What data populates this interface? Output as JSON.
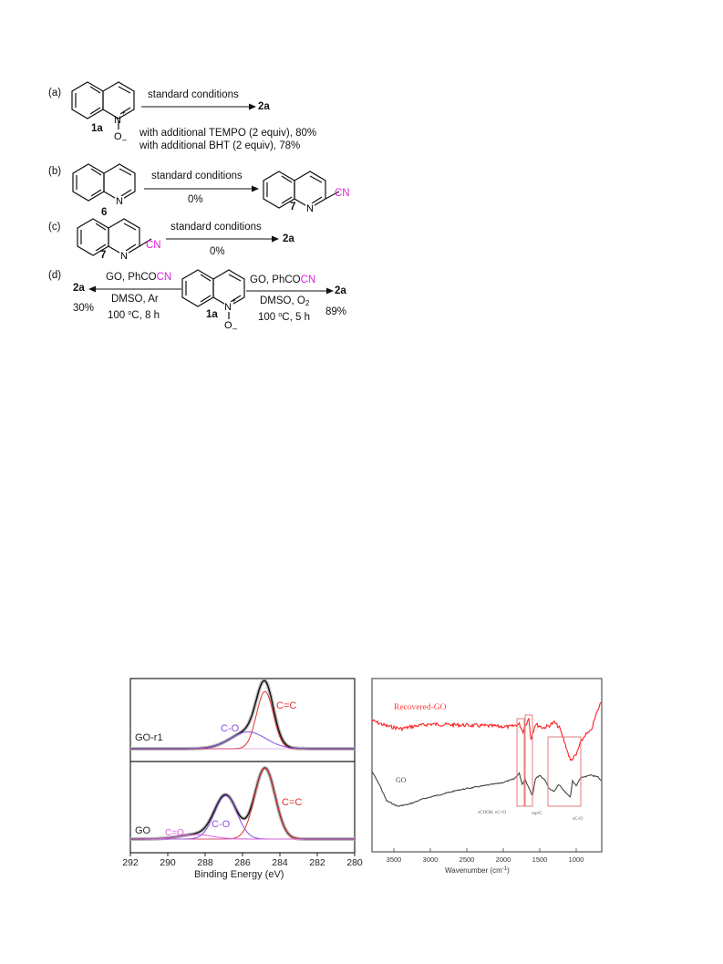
{
  "scheme": {
    "a": {
      "label": "(a)",
      "cmpd": "1a",
      "arrow_text": "standard conditions",
      "product": "2a",
      "note1": "with additional TEMPO (2 equiv), 80%",
      "note2": "with additional BHT (2 equiv), 78%"
    },
    "b": {
      "label": "(b)",
      "cmpd": "6",
      "arrow_text": "standard conditions",
      "yield": "0%",
      "product": "7",
      "cn": "CN"
    },
    "c": {
      "label": "(c)",
      "cmpd": "7",
      "cn": "CN",
      "arrow_text": "standard conditions",
      "yield": "0%",
      "product": "2a"
    },
    "d": {
      "label": "(d)",
      "cmpd": "1a",
      "left": {
        "product": "2a",
        "yield": "30%",
        "reagent_pre": "GO, PhCO",
        "reagent_cn": "CN",
        "solvent": "DMSO, Ar",
        "temp": "100",
        "deg": "o",
        "temp_unit": "C, 8 h"
      },
      "right": {
        "product": "2a",
        "yield": "89%",
        "reagent_pre": "GO, PhCO",
        "reagent_cn": "CN",
        "solvent_pre": "DMSO, O",
        "solvent_sub": "2",
        "temp": "100",
        "deg": "o",
        "temp_unit": "C, 5 h"
      }
    },
    "atoms": {
      "N": "N",
      "plus": "+",
      "O": "O",
      "minus": "–"
    }
  },
  "xps": {
    "top_sample": "GO-r1",
    "bottom_sample": "GO",
    "xlabel": "Binding Energy (eV)",
    "ticks": [
      "292",
      "290",
      "288",
      "286",
      "284",
      "282",
      "280"
    ],
    "top_peaks": [
      "C-O",
      "C=C"
    ],
    "bottom_peaks": [
      "C=O",
      "C-O",
      "C=C"
    ],
    "colors": {
      "cc": "#e03030",
      "co": "#8a4fe0",
      "c_o_double": "#e060e0",
      "envelope": "#111111"
    }
  },
  "ftir": {
    "recovered_label": "Recovered-GO",
    "go_label": "GO",
    "xlabel_pre": "Wavenumber (cm",
    "xlabel_sup": "-1",
    "xlabel_post": ")",
    "ticks": [
      "3500",
      "3000",
      "2500",
      "2000",
      "1500",
      "1000"
    ],
    "ann1": "νCOOH, νC=O",
    "ann2": "νsp²C",
    "ann3": "νC-O",
    "colors": {
      "recovered": "#ff2020",
      "go": "#444444",
      "box": "#e07070"
    }
  },
  "chart_data": [
    {
      "type": "line",
      "title": "",
      "xlabel": "Binding Energy (eV)",
      "ylabel": "",
      "xlim": [
        292,
        280
      ],
      "panels": [
        {
          "name": "GO-r1",
          "peaks": [
            {
              "name": "C=C",
              "center": 284.8
            },
            {
              "name": "C-O",
              "center": 285.7
            }
          ]
        },
        {
          "name": "GO",
          "peaks": [
            {
              "name": "C=C",
              "center": 284.8
            },
            {
              "name": "C-O",
              "center": 286.9
            },
            {
              "name": "C=O",
              "center": 288.5
            }
          ]
        }
      ]
    },
    {
      "type": "line",
      "title": "",
      "xlabel": "Wavenumber (cm-1)",
      "ylabel": "",
      "xlim": [
        3800,
        650
      ],
      "series": [
        {
          "name": "Recovered-GO"
        },
        {
          "name": "GO"
        }
      ]
    }
  ]
}
